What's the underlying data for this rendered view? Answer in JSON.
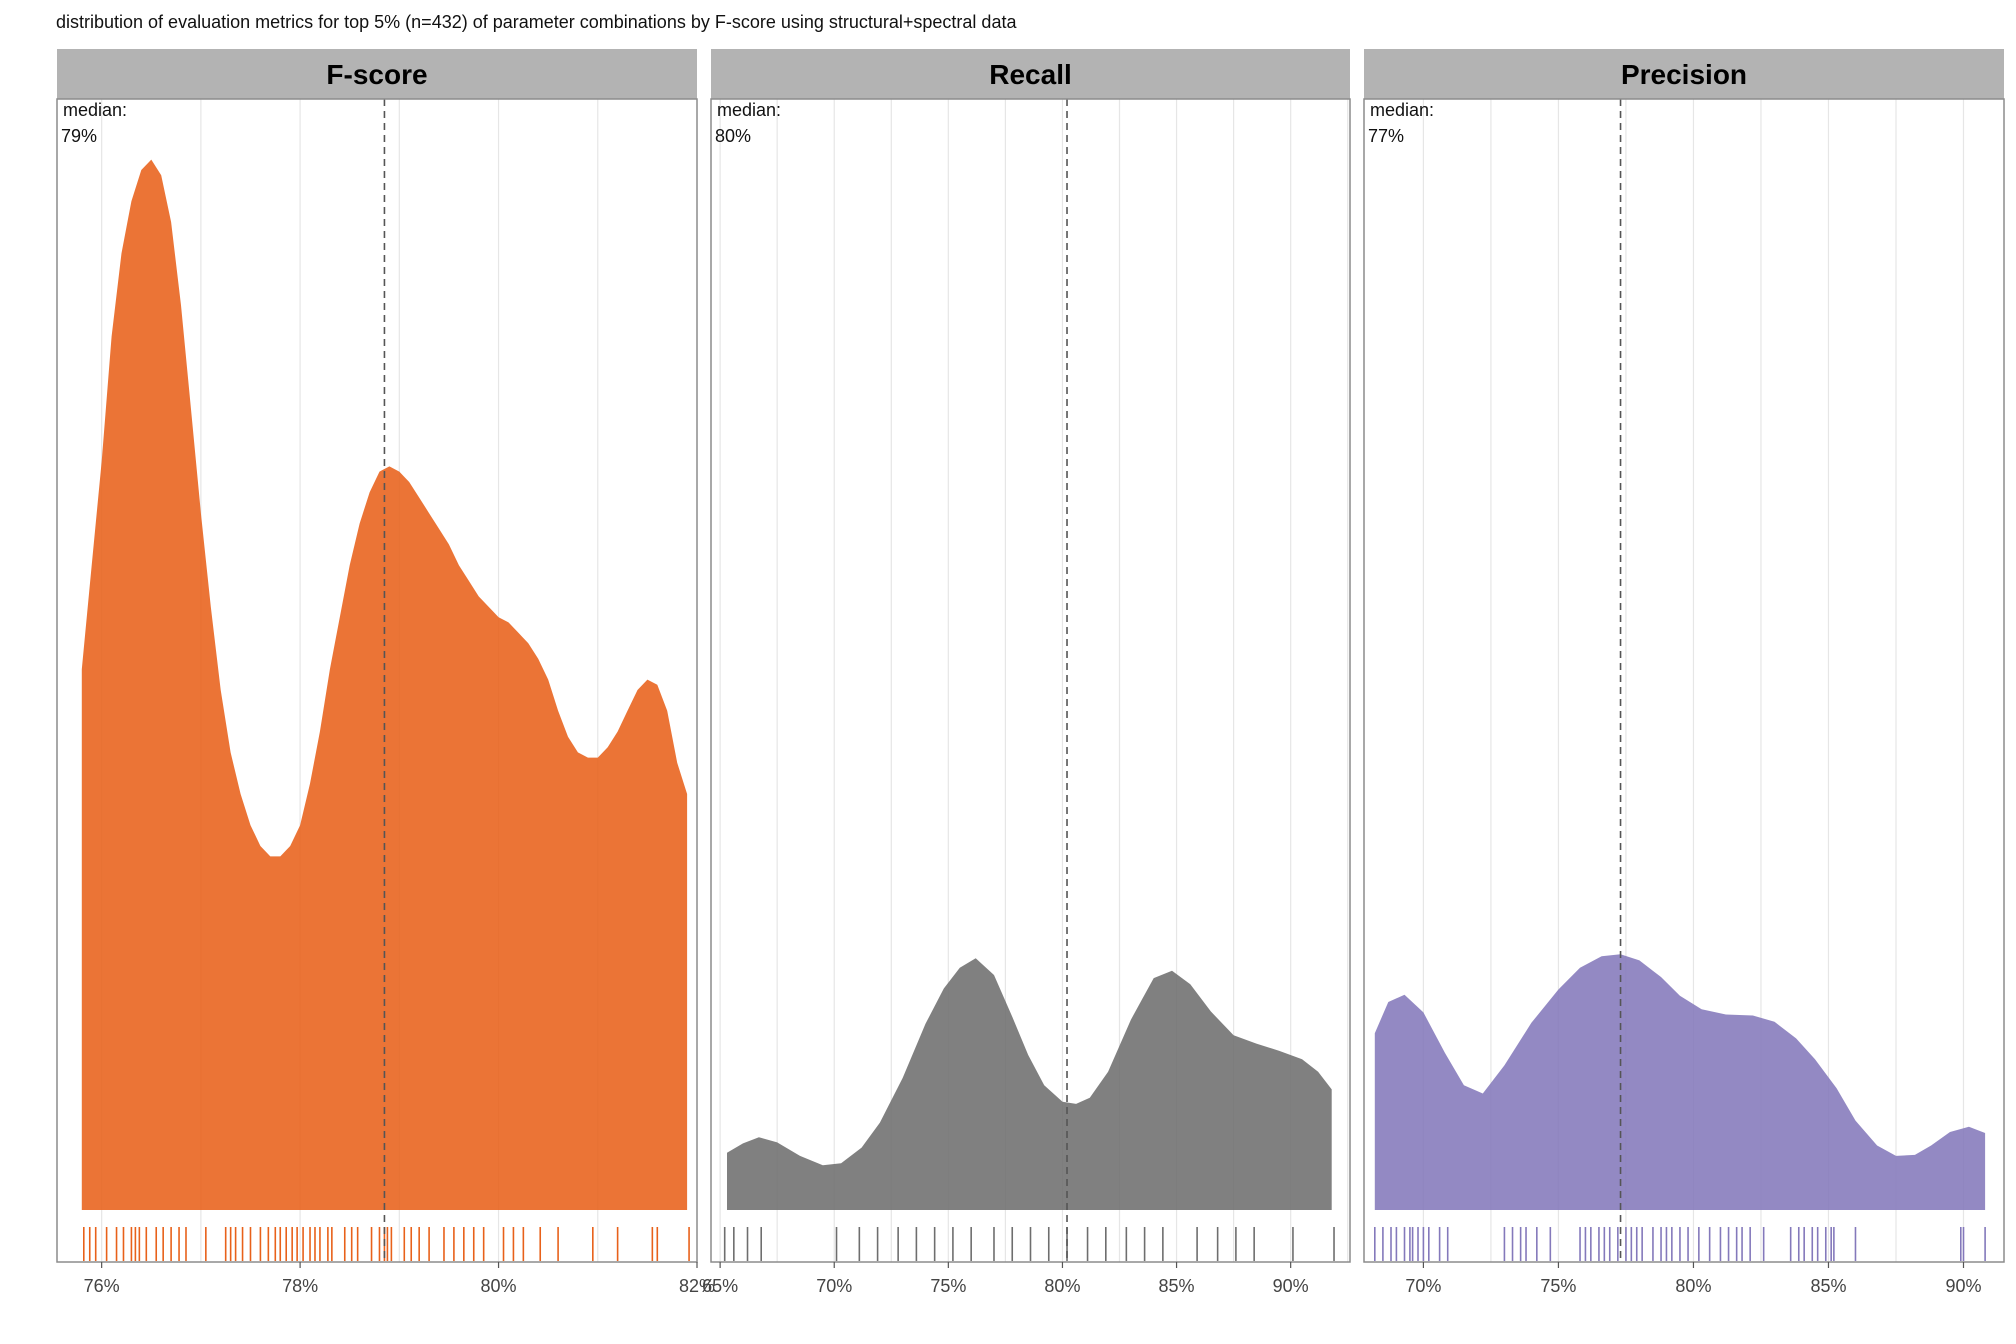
{
  "title": "distribution of evaluation metrics for top 5% (n=432) of parameter combinations by F-score using structural+spectral data",
  "colors": {
    "f_score": "#E8611A",
    "recall": "#6E6E6E",
    "precision": "#8479BB",
    "strip_bg": "#B3B3B3",
    "grid": "#E6E6E6",
    "median_line": "#555555"
  },
  "chart_data": [
    {
      "type": "area",
      "panel": "F-score",
      "color_key": "f_score",
      "median_label": "median:",
      "median_value_label": "79%",
      "median": 78.85,
      "xlim": [
        75.55,
        82.0
      ],
      "ylim": [
        0,
        1.0
      ],
      "x_ticks": [
        76,
        78,
        80,
        82
      ],
      "x_tick_labels": [
        "76%",
        "78%",
        "80%",
        "82%"
      ],
      "density": {
        "x": [
          75.8,
          75.9,
          76.0,
          76.1,
          76.2,
          76.3,
          76.4,
          76.5,
          76.6,
          76.7,
          76.8,
          76.9,
          77.0,
          77.1,
          77.2,
          77.3,
          77.4,
          77.5,
          77.6,
          77.7,
          77.8,
          77.9,
          78.0,
          78.1,
          78.2,
          78.3,
          78.4,
          78.5,
          78.6,
          78.7,
          78.8,
          78.9,
          79.0,
          79.1,
          79.2,
          79.3,
          79.4,
          79.5,
          79.6,
          79.7,
          79.8,
          79.9,
          80.0,
          80.1,
          80.2,
          80.3,
          80.4,
          80.5,
          80.6,
          80.7,
          80.8,
          80.9,
          81.0,
          81.1,
          81.2,
          81.3,
          81.4,
          81.5,
          81.6,
          81.7,
          81.8,
          81.9
        ],
        "y": [
          0.52,
          0.62,
          0.72,
          0.84,
          0.92,
          0.97,
          1.0,
          1.01,
          0.995,
          0.95,
          0.87,
          0.77,
          0.67,
          0.58,
          0.5,
          0.44,
          0.4,
          0.37,
          0.35,
          0.34,
          0.34,
          0.35,
          0.37,
          0.41,
          0.46,
          0.52,
          0.57,
          0.62,
          0.66,
          0.69,
          0.71,
          0.715,
          0.71,
          0.7,
          0.685,
          0.67,
          0.655,
          0.64,
          0.62,
          0.605,
          0.59,
          0.58,
          0.57,
          0.565,
          0.555,
          0.545,
          0.53,
          0.51,
          0.48,
          0.455,
          0.44,
          0.435,
          0.435,
          0.445,
          0.46,
          0.48,
          0.5,
          0.51,
          0.505,
          0.48,
          0.43,
          0.4
        ]
      },
      "rug": [
        75.82,
        75.88,
        75.94,
        76.05,
        76.15,
        76.22,
        76.3,
        76.34,
        76.38,
        76.45,
        76.55,
        76.62,
        76.7,
        76.78,
        76.85,
        77.05,
        77.25,
        77.3,
        77.35,
        77.42,
        77.5,
        77.6,
        77.68,
        77.75,
        77.8,
        77.86,
        77.92,
        77.97,
        78.03,
        78.1,
        78.15,
        78.2,
        78.28,
        78.32,
        78.45,
        78.52,
        78.58,
        78.72,
        78.8,
        78.85,
        78.88,
        78.92,
        79.05,
        79.12,
        79.2,
        79.3,
        79.45,
        79.55,
        79.65,
        79.75,
        79.85,
        80.05,
        80.15,
        80.25,
        80.42,
        80.6,
        80.95,
        81.2,
        81.55,
        81.6,
        81.92
      ]
    },
    {
      "type": "area",
      "panel": "Recall",
      "color_key": "recall",
      "median_label": "median:",
      "median_value_label": "80%",
      "median": 80.2,
      "xlim": [
        64.6,
        92.6
      ],
      "ylim": [
        0,
        1.0
      ],
      "x_ticks": [
        65,
        70,
        75,
        80,
        85,
        90
      ],
      "x_tick_labels": [
        "65%",
        "70%",
        "75%",
        "80%",
        "85%",
        "90%"
      ],
      "density": {
        "x": [
          65.3,
          66.0,
          66.7,
          67.5,
          68.5,
          69.5,
          70.3,
          71.2,
          72.0,
          73.0,
          74.0,
          74.8,
          75.5,
          76.2,
          77.0,
          77.8,
          78.5,
          79.2,
          80.0,
          80.6,
          81.2,
          82.0,
          83.0,
          84.0,
          84.8,
          85.6,
          86.5,
          87.5,
          88.5,
          89.5,
          90.5,
          91.2,
          91.8
        ],
        "y": [
          0.055,
          0.064,
          0.07,
          0.065,
          0.052,
          0.043,
          0.045,
          0.06,
          0.084,
          0.127,
          0.179,
          0.213,
          0.233,
          0.242,
          0.226,
          0.186,
          0.149,
          0.12,
          0.104,
          0.102,
          0.108,
          0.133,
          0.183,
          0.223,
          0.23,
          0.217,
          0.191,
          0.168,
          0.16,
          0.153,
          0.145,
          0.133,
          0.116
        ]
      },
      "rug": [
        65.2,
        65.6,
        66.2,
        66.8,
        70.1,
        71.1,
        71.9,
        72.8,
        73.6,
        74.4,
        75.2,
        76.0,
        77.0,
        77.8,
        78.6,
        79.4,
        80.2,
        81.1,
        81.9,
        82.8,
        83.6,
        84.4,
        85.9,
        86.8,
        87.6,
        88.4,
        90.1,
        91.9
      ]
    },
    {
      "type": "area",
      "panel": "Precision",
      "color_key": "precision",
      "median_label": "median:",
      "median_value_label": "77%",
      "median": 77.3,
      "xlim": [
        67.8,
        91.5
      ],
      "ylim": [
        0,
        1.0
      ],
      "x_ticks": [
        70,
        75,
        80,
        85,
        90
      ],
      "x_tick_labels": [
        "70%",
        "75%",
        "80%",
        "85%",
        "90%"
      ],
      "density": {
        "x": [
          68.2,
          68.7,
          69.3,
          70.0,
          70.8,
          71.5,
          72.2,
          73.0,
          74.0,
          75.0,
          75.8,
          76.6,
          77.3,
          78.0,
          78.8,
          79.5,
          80.3,
          81.2,
          82.2,
          83.0,
          83.8,
          84.5,
          85.3,
          86.0,
          86.8,
          87.5,
          88.2,
          88.8,
          89.5,
          90.2,
          90.8
        ],
        "y": [
          0.17,
          0.2,
          0.207,
          0.19,
          0.151,
          0.12,
          0.112,
          0.139,
          0.18,
          0.212,
          0.233,
          0.244,
          0.246,
          0.24,
          0.224,
          0.206,
          0.193,
          0.188,
          0.187,
          0.181,
          0.165,
          0.145,
          0.117,
          0.086,
          0.062,
          0.052,
          0.053,
          0.062,
          0.075,
          0.08,
          0.074
        ]
      },
      "rug": [
        68.2,
        68.5,
        68.8,
        69.0,
        69.3,
        69.5,
        69.6,
        69.8,
        70.0,
        70.2,
        70.6,
        70.9,
        73.0,
        73.3,
        73.6,
        73.8,
        74.2,
        74.7,
        75.8,
        76.0,
        76.2,
        76.5,
        76.7,
        76.9,
        77.2,
        77.5,
        77.7,
        77.9,
        78.1,
        78.5,
        78.8,
        79.0,
        79.2,
        79.5,
        79.8,
        80.2,
        80.6,
        81.0,
        81.3,
        81.6,
        81.8,
        82.1,
        82.6,
        83.6,
        83.9,
        84.1,
        84.4,
        84.6,
        84.9,
        85.1,
        85.2,
        86.0,
        89.9,
        90.0,
        90.8
      ]
    }
  ]
}
